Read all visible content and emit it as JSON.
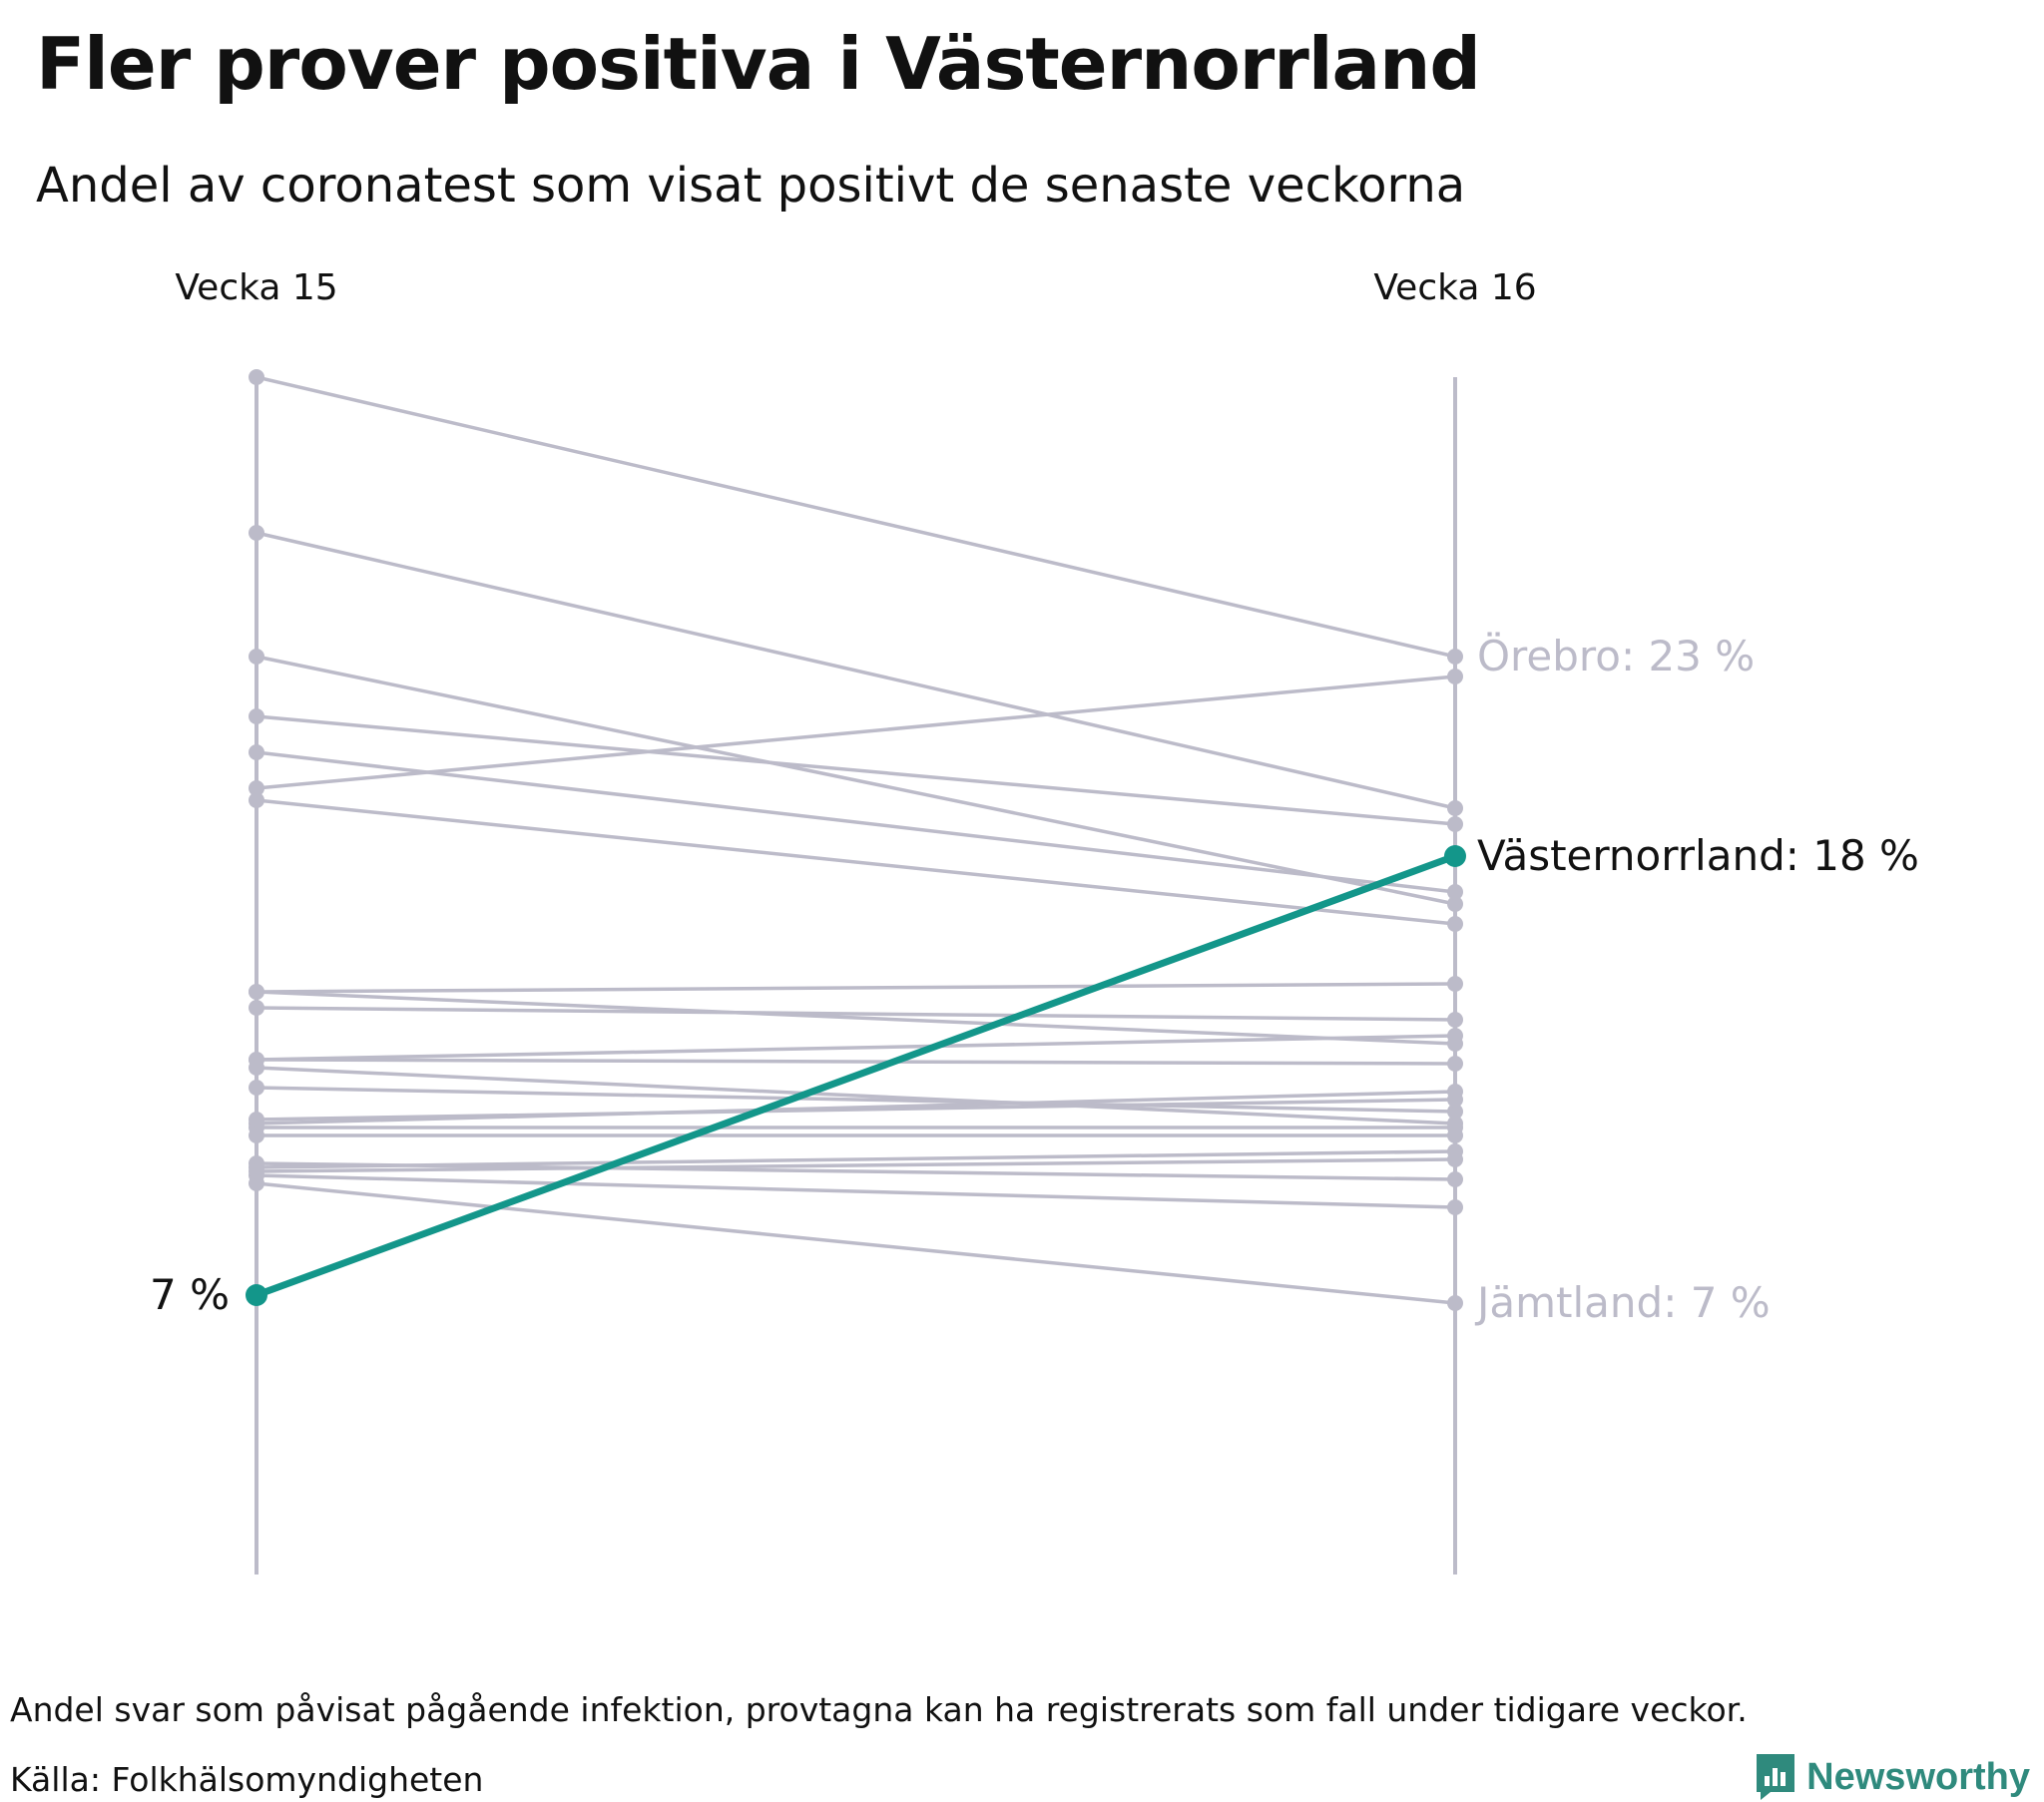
{
  "title": "Fler prover positiva i Västernorrland",
  "subtitle": "Andel av coronatest som visat positivt de senaste veckorna",
  "footer": {
    "note": "Andel svar som påvisat pågående infektion, provtagna kan ha registrerats som fall under tidigare veckor.",
    "source": "Källa: Folkhälsomyndigheten",
    "brand": "Newsworthy"
  },
  "colors": {
    "highlight": "#13968a",
    "muted": "#bcbbc9",
    "text": "#111111",
    "brand": "#2f8a7d"
  },
  "chart_data": {
    "type": "slope",
    "categories": [
      "Vecka 15",
      "Vecka 16"
    ],
    "unit": "%",
    "ylim": [
      0,
      30
    ],
    "highlight": {
      "name": "Västernorrland",
      "values": [
        7.0,
        18.0
      ],
      "label_start": "7 %",
      "label_end": "Västernorrland: 18 %"
    },
    "annotations": [
      {
        "name": "Örebro",
        "label": "Örebro: 23 %",
        "value": 23.0
      },
      {
        "name": "Jämtland",
        "label": "Jämtland: 7 %",
        "value": 6.8
      }
    ],
    "series": [
      {
        "values": [
          30.0,
          23.0
        ]
      },
      {
        "values": [
          26.1,
          19.2
        ]
      },
      {
        "values": [
          23.0,
          16.8
        ]
      },
      {
        "values": [
          21.5,
          18.8
        ]
      },
      {
        "values": [
          20.6,
          17.1
        ]
      },
      {
        "values": [
          19.7,
          22.5
        ]
      },
      {
        "values": [
          19.4,
          16.3
        ]
      },
      {
        "values": [
          14.6,
          14.8
        ]
      },
      {
        "values": [
          14.2,
          13.9
        ]
      },
      {
        "values": [
          12.9,
          13.5
        ]
      },
      {
        "values": [
          12.9,
          12.8
        ]
      },
      {
        "values": [
          12.7,
          11.3
        ]
      },
      {
        "values": [
          12.2,
          11.6
        ]
      },
      {
        "values": [
          11.3,
          12.1
        ]
      },
      {
        "values": [
          11.2,
          11.2
        ]
      },
      {
        "values": [
          11.4,
          11.9
        ]
      },
      {
        "values": [
          11.0,
          11.0
        ]
      },
      {
        "values": [
          10.2,
          10.6
        ]
      },
      {
        "values": [
          10.3,
          9.9
        ]
      },
      {
        "values": [
          10.0,
          9.2
        ]
      },
      {
        "values": [
          9.8,
          6.8
        ]
      },
      {
        "values": [
          14.6,
          13.3
        ]
      },
      {
        "values": [
          10.1,
          10.4
        ]
      }
    ]
  }
}
